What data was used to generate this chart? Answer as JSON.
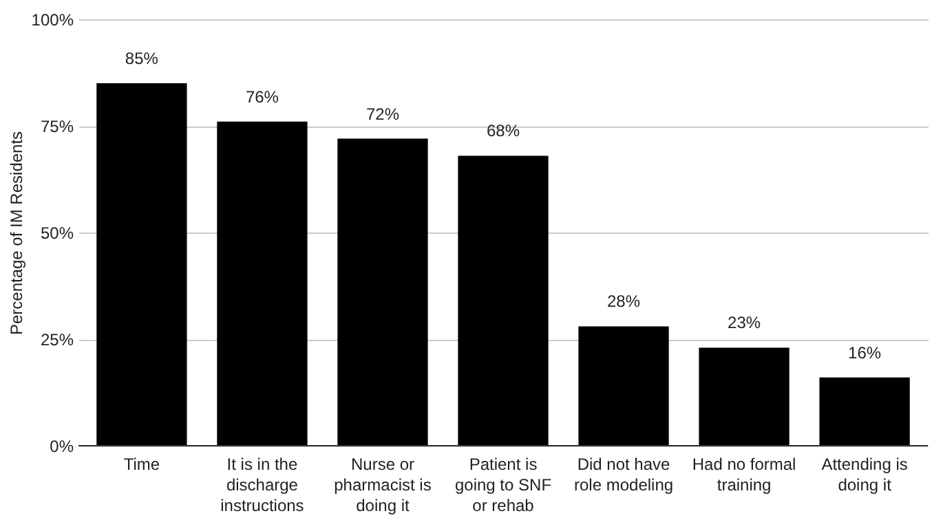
{
  "chart_data": {
    "type": "bar",
    "ylabel": "Percentage of IM Residents",
    "categories": [
      "Time",
      "It is in the\ndischarge\ninstructions",
      "Nurse or\npharmacist is\ndoing it",
      "Patient is\ngoing to SNF\nor rehab",
      "Did not have\nrole modeling",
      "Had no formal\ntraining",
      "Attending is\ndoing it"
    ],
    "values": [
      85,
      76,
      72,
      68,
      28,
      23,
      16
    ],
    "value_labels": [
      "85%",
      "76%",
      "72%",
      "68%",
      "28%",
      "23%",
      "16%"
    ],
    "color": "#000000",
    "ylim": [
      0,
      100
    ],
    "yticks": [
      {
        "value": 0,
        "label": "0%"
      },
      {
        "value": 25,
        "label": "25%"
      },
      {
        "value": 50,
        "label": "50%"
      },
      {
        "value": 75,
        "label": "75%"
      },
      {
        "value": 100,
        "label": "100%"
      }
    ],
    "grid": "y"
  }
}
